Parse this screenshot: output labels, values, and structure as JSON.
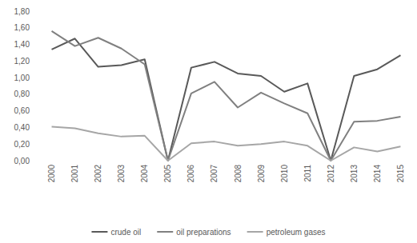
{
  "chart_data": {
    "type": "line",
    "categories": [
      "2000",
      "2001",
      "2002",
      "2003",
      "2004",
      "2005",
      "2006",
      "2007",
      "2008",
      "2009",
      "2010",
      "2011",
      "2012",
      "2013",
      "2014",
      "2015"
    ],
    "series": [
      {
        "name": "crude oil",
        "color": "#595959",
        "values": [
          1.34,
          1.47,
          1.13,
          1.15,
          1.22,
          0,
          1.12,
          1.19,
          1.05,
          1.02,
          0.83,
          0.93,
          0,
          1.02,
          1.1,
          1.27
        ]
      },
      {
        "name": "oil preparations",
        "color": "#808080",
        "values": [
          1.56,
          1.38,
          1.48,
          1.35,
          1.16,
          0,
          0.81,
          0.95,
          0.64,
          0.82,
          0.69,
          0.57,
          0,
          0.47,
          0.48,
          0.53
        ]
      },
      {
        "name": "petroleum gases",
        "color": "#a6a6a6",
        "values": [
          0.41,
          0.39,
          0.33,
          0.29,
          0.3,
          0,
          0.21,
          0.23,
          0.18,
          0.2,
          0.23,
          0.18,
          0,
          0.16,
          0.11,
          0.17
        ]
      }
    ],
    "ylim": [
      0,
      1.8
    ],
    "yticks": [
      {
        "value": 0,
        "label": "0,00"
      },
      {
        "value": 0.2,
        "label": "0,20"
      },
      {
        "value": 0.4,
        "label": "0,40"
      },
      {
        "value": 0.6,
        "label": "0,60"
      },
      {
        "value": 0.8,
        "label": "0,80"
      },
      {
        "value": 1.0,
        "label": "1,00"
      },
      {
        "value": 1.2,
        "label": "1,20"
      },
      {
        "value": 1.4,
        "label": "1,40"
      },
      {
        "value": 1.6,
        "label": "1,60"
      },
      {
        "value": 1.8,
        "label": "1,80"
      }
    ],
    "grid": false,
    "legend": "bottom"
  }
}
